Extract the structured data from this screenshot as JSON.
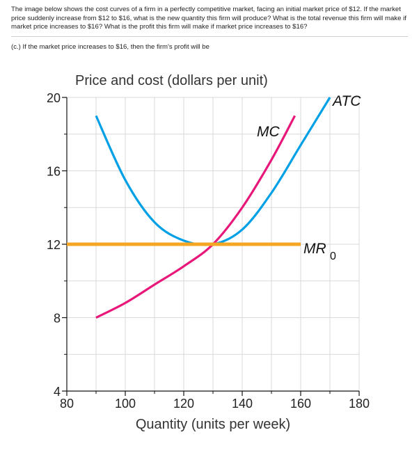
{
  "question": {
    "text": "The image below shows the cost curves of a firm in a perfectly competitive market, facing an initial market price of $12. If the market price suddenly increase from $12 to $16, what is the new quantity this firm will produce? What is the total revenue this firm will make if market price increases to $16? What is the profit this firm will make if market price increases to $16?",
    "subquestion": "(c.) If the market price increases to $16, then the firm's profit will be"
  },
  "chart_data": {
    "type": "line",
    "title": "Price and cost (dollars per unit)",
    "xlabel": "Quantity (units per week)",
    "ylabel": "Price and cost (dollars per unit)",
    "xlim": [
      80,
      180
    ],
    "ylim": [
      4,
      20
    ],
    "x_ticks": [
      80,
      100,
      120,
      140,
      160,
      180
    ],
    "y_ticks": [
      4,
      8,
      12,
      16,
      20
    ],
    "grid": true,
    "series": [
      {
        "name": "ATC",
        "color": "#00a0e6",
        "x": [
          90,
          100,
          110,
          120,
          130,
          140,
          150,
          160,
          170
        ],
        "y": [
          19.0,
          15.5,
          13.2,
          12.2,
          12.0,
          12.8,
          14.8,
          17.4,
          20.0
        ]
      },
      {
        "name": "MC",
        "color": "#e8177a",
        "x": [
          90,
          100,
          110,
          120,
          130,
          140,
          150,
          158
        ],
        "y": [
          8.0,
          8.8,
          9.8,
          10.8,
          12.0,
          14.0,
          16.6,
          19.0
        ]
      },
      {
        "name": "MR0",
        "color": "#f5a623",
        "x": [
          80,
          160
        ],
        "y": [
          12,
          12
        ]
      }
    ],
    "labels": {
      "atc": "ATC",
      "mc": "MC",
      "mr": "MR",
      "mr_sub": "0"
    }
  }
}
